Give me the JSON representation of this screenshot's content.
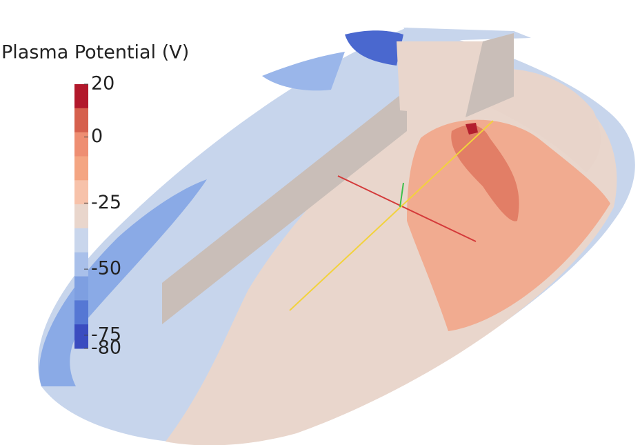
{
  "colorbar": {
    "title": "Plasma Potential (V)",
    "ticks": [
      20,
      0,
      -25,
      -50,
      -75,
      -80
    ]
  }
}
